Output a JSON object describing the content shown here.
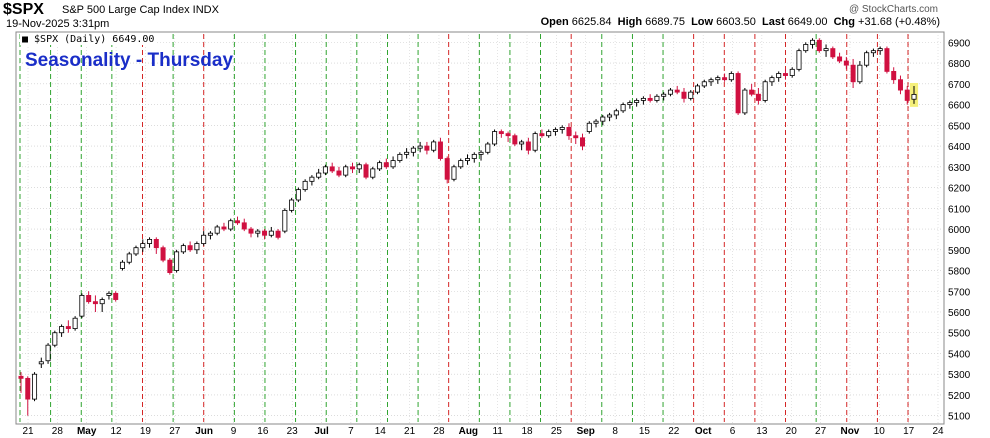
{
  "header": {
    "symbol": "$SPX",
    "name": "S&P 500 Large Cap Index  INDX",
    "date": "19-Nov-2025 3:31pm",
    "brand": "@ StockCharts.com",
    "quote": {
      "open_label": "Open",
      "open": "6625.84",
      "high_label": "High",
      "high": "6689.75",
      "low_label": "Low",
      "low": "6603.50",
      "last_label": "Last",
      "last": "6649.00",
      "chg_label": "Chg",
      "chg": "+31.68 (+0.48%)"
    }
  },
  "legend_text": "■ $SPX (Daily) 6649.00",
  "annotation": "Seasonality - Thursday",
  "colors": {
    "up": "#000000",
    "down": "#d01040",
    "green_line": "#1a9a1a",
    "red_line": "#d01010",
    "grid": "#c8c8c8",
    "highlight": "#f5f07a"
  },
  "chart_data": {
    "type": "candlestick",
    "y_ticks": [
      5100,
      5200,
      5300,
      5400,
      5500,
      5600,
      5700,
      5800,
      5900,
      6000,
      6100,
      6200,
      6300,
      6400,
      6500,
      6600,
      6700,
      6800,
      6900
    ],
    "ylim": [
      5060,
      6950
    ],
    "x_labels": [
      "21",
      "28",
      "May",
      "12",
      "19",
      "27",
      "Jun",
      "9",
      "16",
      "23",
      "Jul",
      "7",
      "14",
      "21",
      "28",
      "Aug",
      "11",
      "18",
      "25",
      "Sep",
      "8",
      "15",
      "22",
      "Oct",
      "6",
      "13",
      "20",
      "27",
      "Nov",
      "10",
      "17",
      "24"
    ],
    "thursday_lines": [
      {
        "label": "Apr 24",
        "color": "green"
      },
      {
        "label": "May 1",
        "color": "green"
      },
      {
        "label": "May 8",
        "color": "green"
      },
      {
        "label": "May 15",
        "color": "green"
      },
      {
        "label": "May 22",
        "color": "red"
      },
      {
        "label": "May 29",
        "color": "green"
      },
      {
        "label": "Jun 5",
        "color": "red"
      },
      {
        "label": "Jun 12",
        "color": "green"
      },
      {
        "label": "Jun 19",
        "color": "green"
      },
      {
        "label": "Jun 26",
        "color": "green"
      },
      {
        "label": "Jul 3",
        "color": "green"
      },
      {
        "label": "Jul 10",
        "color": "green"
      },
      {
        "label": "Jul 17",
        "color": "green"
      },
      {
        "label": "Jul 24",
        "color": "green"
      },
      {
        "label": "Jul 31",
        "color": "red"
      },
      {
        "label": "Aug 7",
        "color": "green"
      },
      {
        "label": "Aug 14",
        "color": "green"
      },
      {
        "label": "Aug 21",
        "color": "green"
      },
      {
        "label": "Aug 28",
        "color": "red"
      },
      {
        "label": "Sep 4",
        "color": "green"
      },
      {
        "label": "Sep 11",
        "color": "green"
      },
      {
        "label": "Sep 18",
        "color": "green"
      },
      {
        "label": "Sep 25",
        "color": "red"
      },
      {
        "label": "Oct 2",
        "color": "red"
      },
      {
        "label": "Oct 9",
        "color": "red"
      },
      {
        "label": "Oct 16",
        "color": "red"
      },
      {
        "label": "Oct 23",
        "color": "green"
      },
      {
        "label": "Oct 30",
        "color": "red"
      },
      {
        "label": "Nov 6",
        "color": "red"
      },
      {
        "label": "Nov 13",
        "color": "red"
      }
    ],
    "series": [
      {
        "name": "$SPX (Daily)",
        "last": 6649.0,
        "ohlc": [
          [
            5290,
            5310,
            5210,
            5280
          ],
          [
            5280,
            5290,
            5100,
            5180
          ],
          [
            5180,
            5310,
            5170,
            5300
          ],
          [
            5350,
            5380,
            5330,
            5360
          ],
          [
            5365,
            5450,
            5350,
            5440
          ],
          [
            5440,
            5510,
            5430,
            5500
          ],
          [
            5500,
            5540,
            5480,
            5530
          ],
          [
            5530,
            5560,
            5500,
            5520
          ],
          [
            5520,
            5580,
            5510,
            5570
          ],
          [
            5580,
            5690,
            5570,
            5680
          ],
          [
            5680,
            5700,
            5640,
            5650
          ],
          [
            5650,
            5680,
            5600,
            5640
          ],
          [
            5640,
            5670,
            5600,
            5660
          ],
          [
            5680,
            5700,
            5660,
            5690
          ],
          [
            5690,
            5700,
            5650,
            5660
          ],
          [
            5810,
            5850,
            5800,
            5840
          ],
          [
            5840,
            5890,
            5830,
            5880
          ],
          [
            5880,
            5920,
            5870,
            5910
          ],
          [
            5910,
            5950,
            5890,
            5930
          ],
          [
            5930,
            5960,
            5910,
            5950
          ],
          [
            5950,
            5960,
            5880,
            5910
          ],
          [
            5910,
            5920,
            5840,
            5850
          ],
          [
            5850,
            5860,
            5780,
            5790
          ],
          [
            5800,
            5900,
            5790,
            5890
          ],
          [
            5890,
            5930,
            5880,
            5920
          ],
          [
            5920,
            5940,
            5890,
            5900
          ],
          [
            5900,
            5940,
            5880,
            5930
          ],
          [
            5930,
            5990,
            5920,
            5970
          ],
          [
            5970,
            5990,
            5950,
            5980
          ],
          [
            5980,
            6020,
            5970,
            6010
          ],
          [
            6010,
            6030,
            5990,
            6000
          ],
          [
            6000,
            6050,
            5990,
            6040
          ],
          [
            6040,
            6060,
            6020,
            6030
          ],
          [
            6030,
            6050,
            5990,
            6000
          ],
          [
            6000,
            6010,
            5960,
            5980
          ],
          [
            5980,
            6000,
            5960,
            5990
          ],
          [
            5990,
            6000,
            5950,
            5970
          ],
          [
            5970,
            6010,
            5960,
            5990
          ],
          [
            5990,
            6000,
            5950,
            5960
          ],
          [
            5990,
            6100,
            5980,
            6090
          ],
          [
            6090,
            6150,
            6080,
            6140
          ],
          [
            6140,
            6200,
            6130,
            6190
          ],
          [
            6190,
            6240,
            6180,
            6230
          ],
          [
            6230,
            6260,
            6210,
            6250
          ],
          [
            6250,
            6290,
            6240,
            6270
          ],
          [
            6270,
            6310,
            6260,
            6300
          ],
          [
            6300,
            6320,
            6270,
            6280
          ],
          [
            6280,
            6300,
            6250,
            6260
          ],
          [
            6260,
            6310,
            6250,
            6300
          ],
          [
            6300,
            6320,
            6270,
            6290
          ],
          [
            6290,
            6320,
            6270,
            6310
          ],
          [
            6310,
            6320,
            6240,
            6250
          ],
          [
            6250,
            6300,
            6240,
            6290
          ],
          [
            6290,
            6330,
            6280,
            6320
          ],
          [
            6320,
            6340,
            6290,
            6300
          ],
          [
            6300,
            6350,
            6290,
            6330
          ],
          [
            6330,
            6370,
            6320,
            6360
          ],
          [
            6360,
            6390,
            6340,
            6370
          ],
          [
            6370,
            6400,
            6350,
            6390
          ],
          [
            6390,
            6420,
            6370,
            6400
          ],
          [
            6400,
            6420,
            6360,
            6380
          ],
          [
            6380,
            6430,
            6370,
            6420
          ],
          [
            6420,
            6440,
            6330,
            6340
          ],
          [
            6340,
            6350,
            6220,
            6240
          ],
          [
            6240,
            6310,
            6230,
            6300
          ],
          [
            6300,
            6340,
            6290,
            6330
          ],
          [
            6330,
            6360,
            6310,
            6340
          ],
          [
            6340,
            6370,
            6320,
            6360
          ],
          [
            6360,
            6380,
            6330,
            6370
          ],
          [
            6370,
            6420,
            6360,
            6410
          ],
          [
            6410,
            6480,
            6400,
            6470
          ],
          [
            6470,
            6480,
            6440,
            6460
          ],
          [
            6460,
            6470,
            6420,
            6450
          ],
          [
            6450,
            6460,
            6400,
            6410
          ],
          [
            6410,
            6430,
            6380,
            6420
          ],
          [
            6420,
            6440,
            6360,
            6380
          ],
          [
            6380,
            6470,
            6370,
            6460
          ],
          [
            6460,
            6480,
            6440,
            6450
          ],
          [
            6450,
            6480,
            6440,
            6470
          ],
          [
            6470,
            6490,
            6450,
            6480
          ],
          [
            6480,
            6500,
            6460,
            6490
          ],
          [
            6490,
            6510,
            6430,
            6450
          ],
          [
            6450,
            6470,
            6410,
            6440
          ],
          [
            6440,
            6460,
            6380,
            6400
          ],
          [
            6470,
            6520,
            6460,
            6510
          ],
          [
            6510,
            6530,
            6490,
            6520
          ],
          [
            6520,
            6550,
            6500,
            6540
          ],
          [
            6540,
            6560,
            6520,
            6550
          ],
          [
            6550,
            6580,
            6530,
            6570
          ],
          [
            6570,
            6610,
            6560,
            6600
          ],
          [
            6600,
            6620,
            6580,
            6610
          ],
          [
            6610,
            6630,
            6590,
            6620
          ],
          [
            6620,
            6640,
            6600,
            6630
          ],
          [
            6630,
            6650,
            6610,
            6620
          ],
          [
            6620,
            6650,
            6610,
            6640
          ],
          [
            6640,
            6660,
            6620,
            6650
          ],
          [
            6650,
            6680,
            6640,
            6670
          ],
          [
            6670,
            6690,
            6650,
            6660
          ],
          [
            6660,
            6680,
            6610,
            6630
          ],
          [
            6630,
            6670,
            6620,
            6660
          ],
          [
            6660,
            6700,
            6650,
            6690
          ],
          [
            6690,
            6720,
            6680,
            6710
          ],
          [
            6710,
            6730,
            6690,
            6720
          ],
          [
            6720,
            6740,
            6700,
            6730
          ],
          [
            6730,
            6750,
            6710,
            6720
          ],
          [
            6720,
            6760,
            6710,
            6750
          ],
          [
            6750,
            6760,
            6550,
            6560
          ],
          [
            6560,
            6680,
            6550,
            6670
          ],
          [
            6670,
            6700,
            6640,
            6650
          ],
          [
            6650,
            6680,
            6600,
            6620
          ],
          [
            6620,
            6720,
            6610,
            6710
          ],
          [
            6710,
            6740,
            6690,
            6730
          ],
          [
            6730,
            6760,
            6710,
            6750
          ],
          [
            6750,
            6770,
            6720,
            6740
          ],
          [
            6740,
            6780,
            6730,
            6770
          ],
          [
            6770,
            6870,
            6760,
            6860
          ],
          [
            6860,
            6900,
            6850,
            6890
          ],
          [
            6890,
            6920,
            6870,
            6910
          ],
          [
            6910,
            6920,
            6850,
            6860
          ],
          [
            6860,
            6890,
            6830,
            6870
          ],
          [
            6870,
            6880,
            6820,
            6830
          ],
          [
            6830,
            6850,
            6800,
            6810
          ],
          [
            6810,
            6830,
            6770,
            6790
          ],
          [
            6790,
            6820,
            6680,
            6710
          ],
          [
            6710,
            6810,
            6700,
            6790
          ],
          [
            6790,
            6860,
            6780,
            6850
          ],
          [
            6850,
            6870,
            6830,
            6860
          ],
          [
            6860,
            6880,
            6840,
            6870
          ],
          [
            6870,
            6880,
            6750,
            6760
          ],
          [
            6760,
            6780,
            6700,
            6720
          ],
          [
            6720,
            6740,
            6650,
            6670
          ],
          [
            6670,
            6690,
            6600,
            6620
          ],
          [
            6625.84,
            6689.75,
            6603.5,
            6649
          ]
        ]
      }
    ]
  }
}
